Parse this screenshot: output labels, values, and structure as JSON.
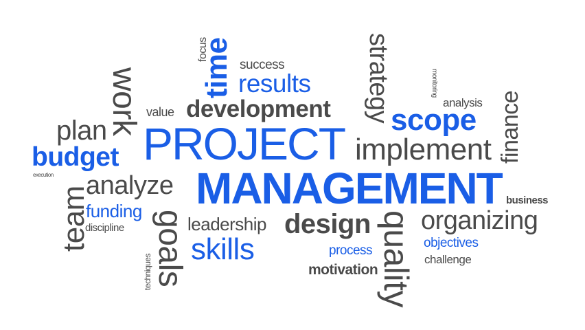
{
  "colors": {
    "blue": "#1a5ee6",
    "grey": "#4a4a4a",
    "background": "#ffffff"
  },
  "words": {
    "focus": "focus",
    "time": "time",
    "success": "success",
    "results": "results",
    "strategy": "strategy",
    "monitoring": "monitoring",
    "analysis": "analysis",
    "finance": "finance",
    "work": "work",
    "value": "value",
    "development": "development",
    "scope": "scope",
    "plan": "plan",
    "project": "PROJECT",
    "implement": "implement",
    "budget": "budget",
    "execution": "execution",
    "analyze": "analyze",
    "management": "MANAGEMENT",
    "business": "business",
    "team": "team",
    "funding": "funding",
    "goals": "goals",
    "leadership": "leadership",
    "design": "design",
    "quality": "quality",
    "organizing": "organizing",
    "discipline": "discipline",
    "skills": "skills",
    "process": "process",
    "objectives": "objectives",
    "techniques": "techniques",
    "motivation": "motivation",
    "challenge": "challenge"
  }
}
